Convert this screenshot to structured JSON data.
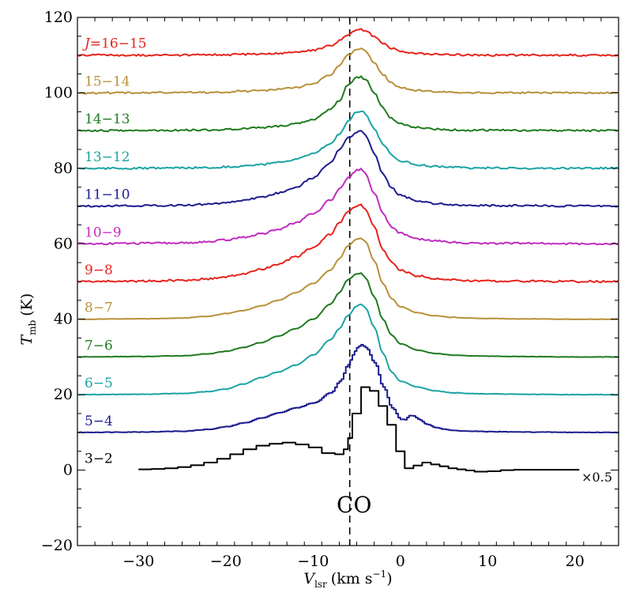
{
  "chart_data": {
    "type": "line",
    "title": "",
    "xlabel_main": "V",
    "xlabel_sub": "lsr",
    "xlabel_units": "(km s",
    "xlabel_exp": "−1",
    "xlabel_close": ")",
    "ylabel_main": "T",
    "ylabel_sub": "mb",
    "ylabel_units": "(K)",
    "xlim": [
      -37,
      25
    ],
    "ylim": [
      -20,
      120
    ],
    "xticks": [
      -30,
      -20,
      -10,
      0,
      10,
      20
    ],
    "xtick_labels": [
      "−30",
      "−20",
      "−10",
      "0",
      "10",
      "20"
    ],
    "yticks": [
      -20,
      0,
      20,
      40,
      60,
      80,
      100,
      120
    ],
    "ytick_labels": [
      "−20",
      "0",
      "20",
      "40",
      "60",
      "80",
      "100",
      "120"
    ],
    "reference_line_x": -5.8,
    "annotations": {
      "molecule": "CO",
      "scale_note": "×0.5"
    },
    "series": [
      {
        "name": "3−2",
        "label": "3−2",
        "color": "#000000",
        "offset": 0,
        "steps": true,
        "x": [
          -30,
          -28.5,
          -27,
          -25.5,
          -24,
          -22.5,
          -21,
          -19.5,
          -18,
          -16.5,
          -15,
          -13.5,
          -12,
          -10.5,
          -9,
          -7.5,
          -6.5,
          -6,
          -5.5,
          -4.5,
          -3.5,
          -2.5,
          -1.5,
          -0.5,
          0.5,
          1.5,
          2.5,
          3.5,
          4.5,
          5.5,
          6.5,
          7.5,
          8.5,
          10,
          11.5,
          13,
          14.5,
          16,
          17.5,
          19.5
        ],
        "y": [
          0.2,
          0.3,
          0.5,
          0.8,
          1.3,
          2.0,
          3.0,
          4.2,
          5.5,
          6.5,
          7.0,
          7.3,
          6.8,
          6.0,
          4.5,
          4.2,
          5.5,
          8.5,
          15.0,
          22.0,
          21.0,
          17.0,
          12.0,
          5.0,
          0.5,
          1.2,
          2.0,
          1.5,
          1.0,
          0.5,
          0.2,
          -0.1,
          -0.4,
          -0.3,
          0.0,
          0.1,
          0.1,
          0.1,
          0.1,
          0.1
        ]
      },
      {
        "name": "5−4",
        "label": "5−4",
        "color": "#1c1c8f",
        "offset": 10,
        "steps": true,
        "x": [
          -37,
          -30,
          -25,
          -22,
          -20,
          -18,
          -16,
          -14,
          -12,
          -10,
          -8,
          -7,
          -6,
          -5.5,
          -5,
          -4.5,
          -4,
          -3,
          -2,
          -1,
          0,
          0.5,
          1,
          1.5,
          2,
          3,
          4,
          5,
          6,
          8,
          10,
          14,
          20,
          25
        ],
        "y": [
          0,
          0.1,
          0.3,
          0.8,
          1.5,
          2.5,
          3.8,
          5.2,
          6.5,
          7.8,
          10.5,
          13.5,
          18.0,
          20.5,
          22.5,
          23.2,
          22.5,
          18.5,
          12.0,
          6.5,
          3.5,
          3.3,
          4.5,
          4.3,
          3.5,
          2.2,
          1.3,
          0.8,
          0.5,
          0.3,
          0.2,
          0.1,
          0,
          0
        ]
      },
      {
        "name": "6−5",
        "label": "6−5",
        "color": "#1ba3a3",
        "offset": 20,
        "steps": false,
        "x": [
          -37,
          -30,
          -25,
          -22,
          -20,
          -18,
          -16,
          -14,
          -12,
          -10,
          -8,
          -7,
          -6,
          -5,
          -4.5,
          -4,
          -3,
          -2,
          -1,
          0,
          2,
          4,
          6,
          8,
          10,
          14,
          20,
          25
        ],
        "y": [
          0,
          0.1,
          0.3,
          0.8,
          1.5,
          2.8,
          4.5,
          6.0,
          7.8,
          10.5,
          14.5,
          17.5,
          21.0,
          23.5,
          24.0,
          23.0,
          18.0,
          11.0,
          6.0,
          3.5,
          2.0,
          1.0,
          0.5,
          0.3,
          0.2,
          0.1,
          0,
          0
        ]
      },
      {
        "name": "7−6",
        "label": "7−6",
        "color": "#1f7a1f",
        "offset": 30,
        "steps": false,
        "x": [
          -37,
          -30,
          -25,
          -22,
          -20,
          -18,
          -16,
          -14,
          -12,
          -10,
          -8,
          -7,
          -6,
          -5,
          -4.5,
          -4,
          -3,
          -2,
          -1,
          0,
          2,
          4,
          6,
          8,
          10,
          14,
          20,
          25
        ],
        "y": [
          0,
          0.1,
          0.3,
          0.8,
          1.5,
          2.5,
          3.8,
          5.5,
          7.5,
          10.0,
          14.0,
          17.0,
          20.5,
          22.0,
          22.2,
          21.0,
          16.0,
          10.0,
          5.8,
          3.5,
          1.8,
          0.9,
          0.5,
          0.3,
          0.2,
          0.1,
          0,
          0
        ]
      },
      {
        "name": "8−7",
        "label": "8−7",
        "color": "#b8903a",
        "offset": 40,
        "steps": false,
        "x": [
          -37,
          -30,
          -25,
          -22,
          -20,
          -18,
          -16,
          -14,
          -12,
          -10,
          -8,
          -7,
          -6,
          -5,
          -4.5,
          -4,
          -3,
          -2,
          -1,
          0,
          2,
          4,
          6,
          8,
          10,
          14,
          20,
          25
        ],
        "y": [
          0,
          0.1,
          0.3,
          0.8,
          1.5,
          2.3,
          3.5,
          5.0,
          7.0,
          9.5,
          13.0,
          16.0,
          19.5,
          21.2,
          21.5,
          20.5,
          15.5,
          9.5,
          5.5,
          3.3,
          1.7,
          0.9,
          0.5,
          0.3,
          0.2,
          0.1,
          0,
          0
        ]
      },
      {
        "name": "9−8",
        "label": "9−8",
        "color": "#e8231d",
        "offset": 50,
        "steps": false,
        "x": [
          -37,
          -30,
          -25,
          -22,
          -20,
          -18,
          -16,
          -14,
          -12,
          -10,
          -8,
          -7,
          -6,
          -5,
          -4.5,
          -4,
          -3,
          -2,
          -1,
          0,
          2,
          4,
          6,
          8,
          10,
          14,
          20,
          25
        ],
        "y": [
          0,
          0.1,
          0.3,
          0.7,
          1.2,
          2.0,
          3.2,
          4.5,
          6.5,
          9.0,
          12.5,
          15.5,
          18.5,
          20.0,
          20.3,
          19.0,
          14.5,
          8.5,
          5.0,
          3.0,
          1.5,
          0.8,
          0.4,
          0.2,
          0.1,
          0.1,
          0,
          0
        ]
      },
      {
        "name": "10−9",
        "label": "10−9",
        "color": "#c02cc0",
        "offset": 60,
        "steps": false,
        "x": [
          -37,
          -30,
          -25,
          -22,
          -20,
          -18,
          -16,
          -14,
          -12,
          -10,
          -8,
          -7,
          -6,
          -5,
          -4.5,
          -4,
          -3,
          -2,
          -1,
          0,
          2,
          4,
          6,
          8,
          10,
          14,
          20,
          25
        ],
        "y": [
          0,
          0.1,
          0.2,
          0.5,
          1.0,
          1.7,
          2.6,
          3.8,
          5.5,
          8.0,
          11.5,
          14.5,
          17.5,
          19.5,
          19.8,
          18.5,
          13.5,
          8.0,
          4.5,
          2.8,
          1.3,
          0.7,
          0.4,
          0.2,
          0.1,
          0.1,
          0,
          0
        ]
      },
      {
        "name": "11−10",
        "label": "11−10",
        "color": "#1c1c8f",
        "offset": 70,
        "steps": false,
        "x": [
          -37,
          -30,
          -25,
          -22,
          -20,
          -18,
          -16,
          -14,
          -12,
          -10,
          -8,
          -7,
          -6,
          -5,
          -4.5,
          -4,
          -3,
          -2,
          -1,
          0,
          2,
          4,
          6,
          8,
          10,
          14,
          20,
          25
        ],
        "y": [
          0,
          0.1,
          0.2,
          0.5,
          0.9,
          1.5,
          2.3,
          3.4,
          5.0,
          7.5,
          11.5,
          15.0,
          18.0,
          19.5,
          19.8,
          18.8,
          14.0,
          8.5,
          4.8,
          2.8,
          1.3,
          0.7,
          0.4,
          0.2,
          0.1,
          0.1,
          0,
          0
        ]
      },
      {
        "name": "13−12",
        "label": "13−12",
        "color": "#1ba3a3",
        "offset": 80,
        "steps": false,
        "x": [
          -37,
          -30,
          -25,
          -22,
          -20,
          -18,
          -16,
          -14,
          -12,
          -10,
          -8,
          -7,
          -6,
          -5,
          -4.5,
          -4,
          -3,
          -2,
          -1,
          0,
          2,
          4,
          6,
          8,
          10,
          14,
          20,
          25
        ],
        "y": [
          0,
          0.0,
          0.1,
          0.2,
          0.4,
          0.6,
          1.0,
          1.5,
          2.3,
          3.8,
          6.5,
          9.0,
          12.5,
          15.0,
          15.3,
          14.5,
          10.5,
          6.5,
          3.5,
          2.0,
          0.9,
          0.5,
          0.3,
          0.1,
          0.1,
          0.0,
          0,
          0
        ]
      },
      {
        "name": "14−13",
        "label": "14−13",
        "color": "#1f7a1f",
        "offset": 90,
        "steps": false,
        "x": [
          -37,
          -30,
          -25,
          -22,
          -20,
          -18,
          -16,
          -14,
          -12,
          -10,
          -8,
          -7,
          -6,
          -5,
          -4.5,
          -4,
          -3,
          -2,
          -1,
          0,
          2,
          4,
          6,
          8,
          10,
          14,
          20,
          25
        ],
        "y": [
          0,
          0.0,
          0.1,
          0.2,
          0.3,
          0.5,
          0.8,
          1.2,
          1.8,
          3.0,
          5.5,
          8.0,
          12.0,
          14.0,
          14.2,
          13.5,
          10.0,
          6.0,
          3.2,
          1.8,
          0.8,
          0.4,
          0.2,
          0.1,
          0.1,
          0.0,
          0,
          0
        ]
      },
      {
        "name": "15−14",
        "label": "15−14",
        "color": "#b8903a",
        "offset": 100,
        "steps": false,
        "x": [
          -37,
          -30,
          -25,
          -22,
          -20,
          -18,
          -16,
          -14,
          -12,
          -10,
          -8,
          -7,
          -6,
          -5,
          -4.5,
          -4,
          -3,
          -2,
          -1,
          0,
          2,
          4,
          6,
          8,
          10,
          14,
          20,
          25
        ],
        "y": [
          0,
          0.0,
          0.1,
          0.1,
          0.2,
          0.4,
          0.6,
          0.9,
          1.4,
          2.5,
          4.8,
          7.2,
          10.0,
          11.5,
          11.6,
          11.0,
          8.0,
          4.8,
          2.6,
          1.4,
          0.6,
          0.3,
          0.2,
          0.1,
          0.0,
          0.0,
          0,
          0
        ]
      },
      {
        "name": "J=16−15",
        "label_prefix": "J",
        "label_rest": "=16−15",
        "color": "#e8231d",
        "offset": 110,
        "steps": false,
        "x": [
          -37,
          -30,
          -25,
          -22,
          -20,
          -18,
          -16,
          -14,
          -12,
          -10,
          -8,
          -7,
          -6,
          -5,
          -4.5,
          -4,
          -3,
          -2,
          -1,
          0,
          2,
          4,
          6,
          8,
          10,
          14,
          20,
          25
        ],
        "y": [
          0,
          0.0,
          0.0,
          0.1,
          0.1,
          0.2,
          0.3,
          0.5,
          0.8,
          1.3,
          2.5,
          3.8,
          5.5,
          6.7,
          6.8,
          6.5,
          5.0,
          3.0,
          1.8,
          1.0,
          0.4,
          0.2,
          0.1,
          0.0,
          0.0,
          0.0,
          0,
          0
        ]
      }
    ]
  }
}
